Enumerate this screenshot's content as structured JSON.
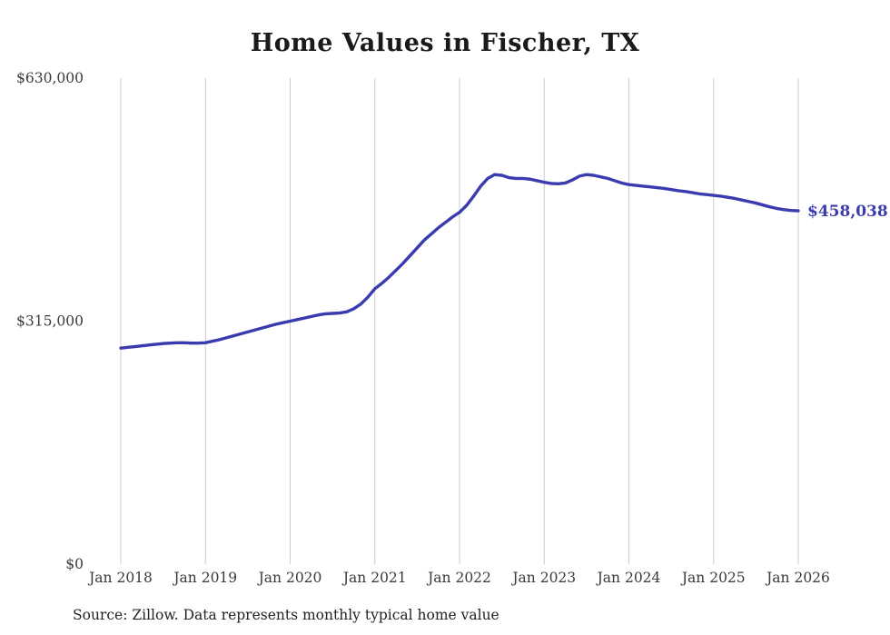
{
  "page": {
    "source_note": "Source: Zillow. Data represents monthly typical home value"
  },
  "chart_data": {
    "type": "line",
    "title": "Home Values in Fischer, TX",
    "x_tick_labels": [
      "Jan 2018",
      "Jan 2019",
      "Jan 2020",
      "Jan 2021",
      "Jan 2022",
      "Jan 2023",
      "Jan 2024",
      "Jan 2025",
      "Jan 2026"
    ],
    "y_tick_labels": [
      "$0",
      "$315,000",
      "$630,000"
    ],
    "y_ticks": [
      0,
      315000,
      630000
    ],
    "ylim": [
      0,
      630000
    ],
    "unit": "USD",
    "frequency": "monthly",
    "x_start": "2018-01",
    "x_end": "2026-01",
    "gridlines": "vertical-only",
    "legend": "none",
    "end_label": "$458,038",
    "final_value": 458038,
    "colors": {
      "line": "#3b3bb0",
      "gridline": "#cccccc",
      "axis_text": "#3a3a3a",
      "end_label_text": "#3b3bb0"
    },
    "series": [
      {
        "name": "Typical home value",
        "values": [
          280000,
          281000,
          282000,
          283000,
          284000,
          285000,
          286000,
          286500,
          287000,
          287000,
          286500,
          286500,
          287000,
          289000,
          291000,
          293500,
          296000,
          298500,
          301000,
          303500,
          306000,
          308500,
          311000,
          313000,
          315000,
          317000,
          319000,
          321000,
          323000,
          324500,
          325000,
          325500,
          327000,
          331000,
          337000,
          346000,
          357000,
          364000,
          372000,
          381000,
          390000,
          400000,
          410000,
          420000,
          428000,
          436000,
          443000,
          450000,
          456000,
          465000,
          477000,
          490000,
          500000,
          505000,
          504000,
          501000,
          500000,
          500000,
          499000,
          497000,
          495000,
          493500,
          493000,
          494000,
          498000,
          503000,
          505000,
          504000,
          502000,
          500000,
          497000,
          494000,
          492000,
          491000,
          490000,
          489000,
          488000,
          487000,
          485500,
          484000,
          483000,
          481500,
          480000,
          479000,
          478000,
          477000,
          475500,
          474000,
          472000,
          470000,
          468000,
          465500,
          463000,
          461000,
          459500,
          458500,
          458038
        ]
      }
    ]
  }
}
